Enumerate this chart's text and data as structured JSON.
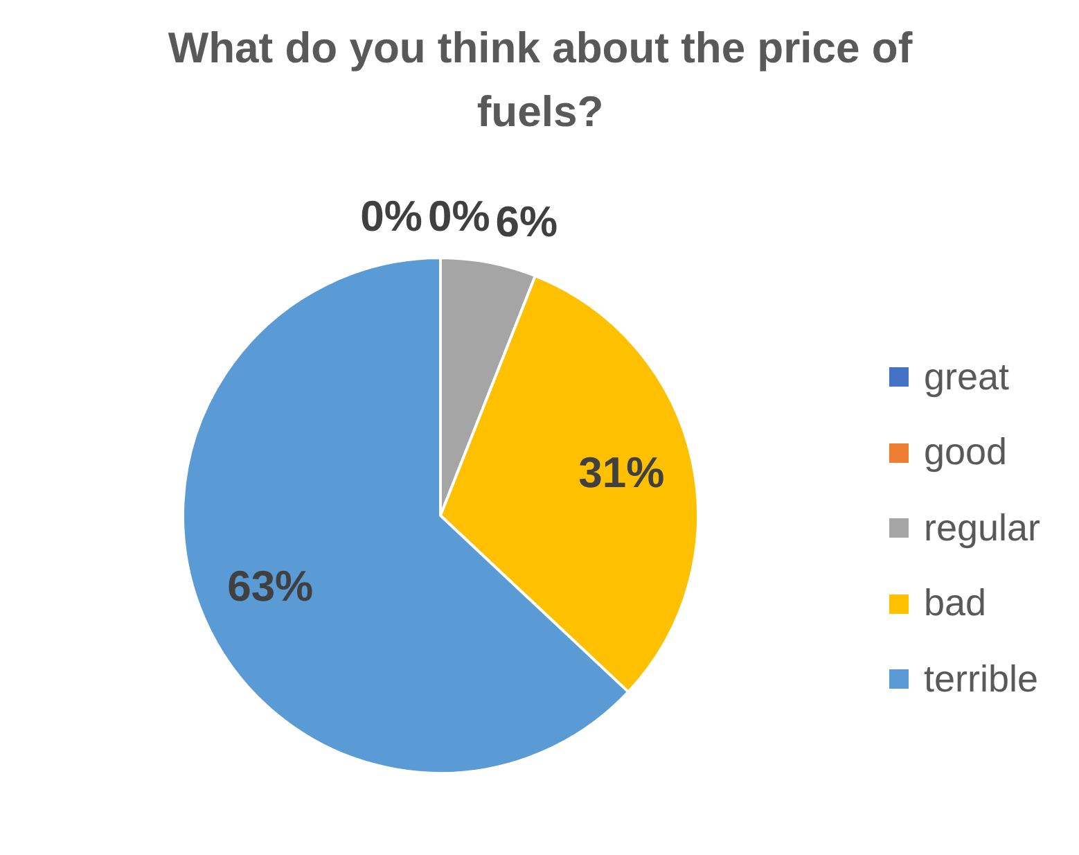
{
  "chart_data": {
    "type": "pie",
    "title": "What do you think about the price of fuels?",
    "categories": [
      "great",
      "good",
      "regular",
      "bad",
      "terrible"
    ],
    "values": [
      0,
      0,
      6,
      31,
      63
    ],
    "value_labels": [
      "0%",
      "0%",
      "6%",
      "31%",
      "63%"
    ],
    "colors": [
      "#4472c4",
      "#ed7d31",
      "#a5a5a5",
      "#ffc000",
      "#5b9bd5"
    ],
    "legend": "right"
  }
}
